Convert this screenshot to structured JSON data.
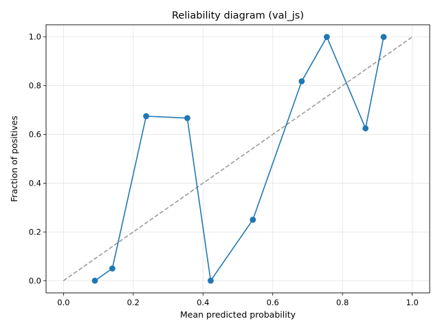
{
  "chart_data": {
    "type": "line",
    "title": "Reliability diagram (val_js)",
    "xlabel": "Mean predicted probability",
    "ylabel": "Fraction of positives",
    "xlim": [
      -0.05,
      1.05
    ],
    "ylim": [
      -0.05,
      1.05
    ],
    "xticks": [
      "0.0",
      "0.2",
      "0.4",
      "0.6",
      "0.8",
      "1.0"
    ],
    "yticks": [
      "0.0",
      "0.2",
      "0.4",
      "0.6",
      "0.8",
      "1.0"
    ],
    "grid": true,
    "series": [
      {
        "color": "#1f77b4",
        "style": "solid-with-circle-markers",
        "x": [
          0.09,
          0.14,
          0.237,
          0.355,
          0.422,
          0.543,
          0.683,
          0.755,
          0.866,
          0.918
        ],
        "y": [
          0.0,
          0.05,
          0.675,
          0.667,
          0.0,
          0.25,
          0.818,
          1.0,
          0.625,
          1.0
        ]
      }
    ],
    "reference_line": {
      "color": "#999999",
      "style": "dashed",
      "x": [
        0.0,
        1.0
      ],
      "y": [
        0.0,
        1.0
      ]
    }
  }
}
